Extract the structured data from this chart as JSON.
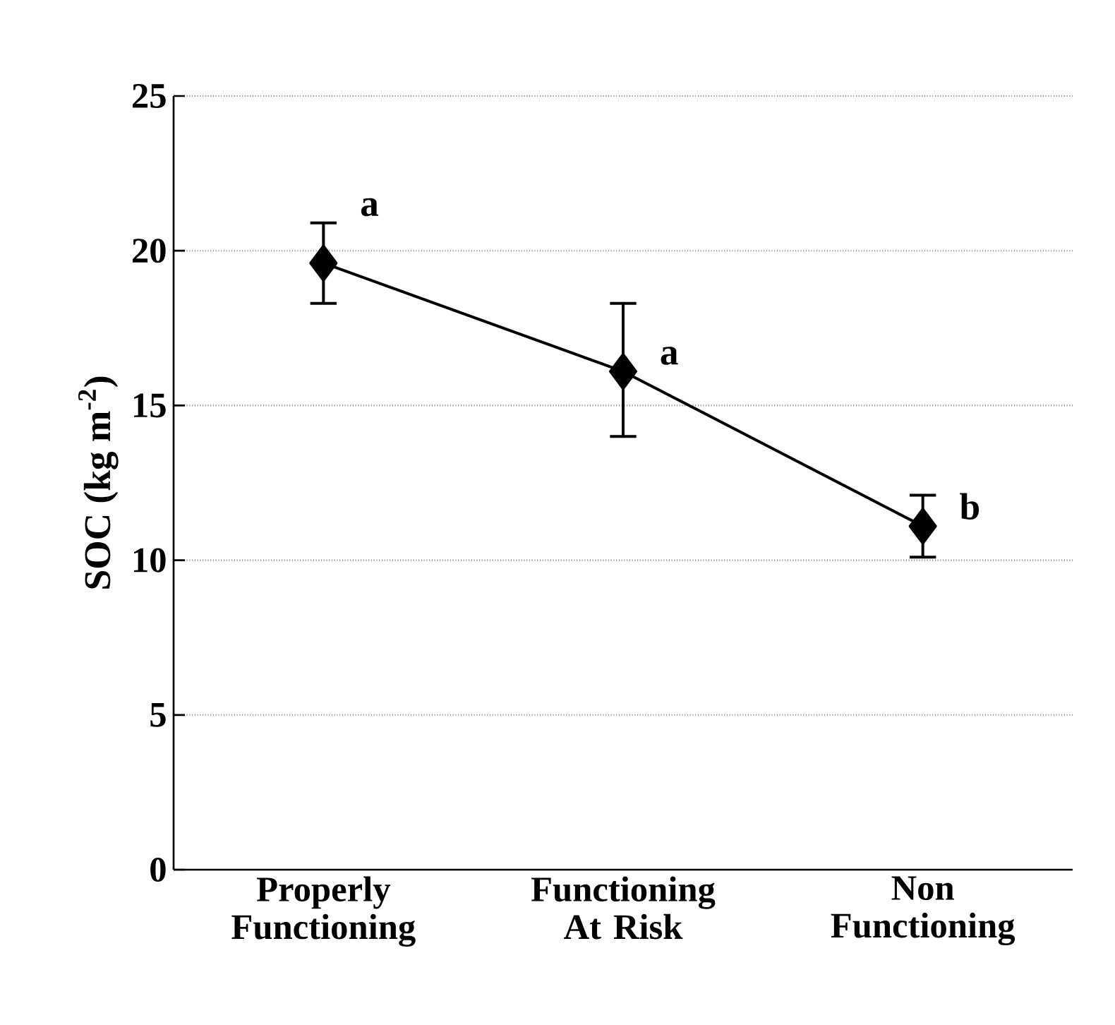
{
  "chart_data": {
    "type": "line",
    "ylabel": "SOC (kg m$^{-2}$)",
    "categories": [
      "Properly Functioning",
      "Functioning At Risk",
      "Non Functioning"
    ],
    "series": [
      {
        "color": "#000000",
        "values": [
          19.6,
          16.1,
          11.1
        ],
        "errors": [
          [
            18.3,
            20.9
          ],
          [
            13.9,
            18.2
          ],
          [
            10.1,
            12.1
          ]
        ]
      }
    ],
    "ylim": [
      0,
      25
    ],
    "yticks": [
      0,
      5,
      10,
      15,
      20,
      25
    ],
    "grid": "y",
    "marker": "diamond",
    "line_style": "solid",
    "annotations": [
      {
        "text": "a",
        "x": "Properly Functioning",
        "y": 20.9
      },
      {
        "text": "a",
        "x": "Functioning At Risk",
        "y": 16.1
      },
      {
        "text": "b",
        "x": "Non Functioning",
        "y": 11.1
      }
    ]
  }
}
